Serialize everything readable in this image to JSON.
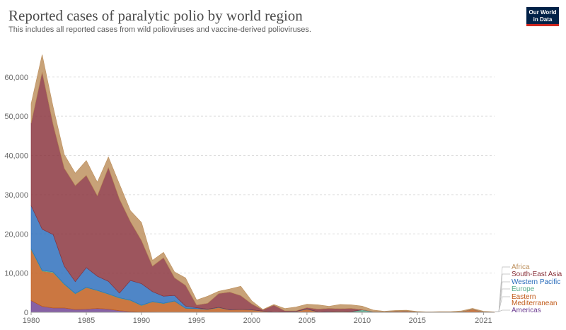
{
  "header": {
    "title": "Reported cases of paralytic polio by world region",
    "subtitle": "This includes all reported cases from wild polioviruses and vaccine-derived polioviruses.",
    "logo_line1": "Our World",
    "logo_line2": "in Data"
  },
  "chart_data": {
    "type": "area",
    "stacked": true,
    "title": "Reported cases of paralytic polio by world region",
    "subtitle": "This includes all reported cases from wild polioviruses and vaccine-derived polioviruses.",
    "xlabel": "",
    "ylabel": "",
    "x": [
      1980,
      1981,
      1982,
      1983,
      1984,
      1985,
      1986,
      1987,
      1988,
      1989,
      1990,
      1991,
      1992,
      1993,
      1994,
      1995,
      1996,
      1997,
      1998,
      1999,
      2000,
      2001,
      2002,
      2003,
      2004,
      2005,
      2006,
      2007,
      2008,
      2009,
      2010,
      2011,
      2012,
      2013,
      2014,
      2015,
      2016,
      2017,
      2018,
      2019,
      2020,
      2021,
      2022
    ],
    "xlim": [
      1980,
      2022
    ],
    "ylim": [
      0,
      67000
    ],
    "x_ticks": [
      1980,
      1985,
      1990,
      1995,
      2000,
      2005,
      2010,
      2015,
      2021
    ],
    "y_ticks": [
      0,
      10000,
      20000,
      30000,
      40000,
      50000,
      60000
    ],
    "y_tick_labels": [
      "0",
      "10,000",
      "20,000",
      "30,000",
      "40,000",
      "50,000",
      "60,000"
    ],
    "grid": true,
    "legend_position": "right",
    "series": [
      {
        "name": "Americas",
        "color": "#6d3e91",
        "values": [
          3000,
          1500,
          1100,
          1100,
          700,
          800,
          1000,
          800,
          400,
          200,
          100,
          50,
          20,
          10,
          5,
          0,
          0,
          0,
          0,
          0,
          0,
          0,
          0,
          0,
          0,
          0,
          0,
          0,
          0,
          0,
          0,
          0,
          0,
          0,
          0,
          0,
          0,
          0,
          0,
          0,
          0,
          0,
          0
        ]
      },
      {
        "name": "Eastern Mediterranean",
        "color": "#c05917",
        "values": [
          13000,
          9000,
          9000,
          6000,
          4000,
          5500,
          4500,
          3800,
          3200,
          2800,
          1600,
          2600,
          2200,
          2800,
          1000,
          900,
          700,
          1200,
          600,
          700,
          600,
          300,
          100,
          150,
          200,
          800,
          100,
          200,
          300,
          200,
          150,
          100,
          150,
          250,
          400,
          100,
          50,
          50,
          50,
          150,
          700,
          100,
          50
        ]
      },
      {
        "name": "Europe",
        "color": "#58ac8c",
        "values": [
          200,
          200,
          200,
          150,
          100,
          100,
          100,
          100,
          100,
          100,
          100,
          100,
          80,
          80,
          50,
          50,
          50,
          30,
          20,
          20,
          10,
          5,
          5,
          5,
          5,
          5,
          5,
          5,
          5,
          5,
          460,
          5,
          5,
          5,
          5,
          5,
          5,
          5,
          5,
          5,
          5,
          5,
          5
        ]
      },
      {
        "name": "Western Pacific",
        "color": "#286bbb",
        "values": [
          11000,
          10500,
          9500,
          4500,
          3000,
          5000,
          3600,
          3200,
          1200,
          5000,
          5500,
          2500,
          1800,
          1400,
          500,
          200,
          50,
          40,
          30,
          30,
          20,
          10,
          5,
          5,
          5,
          80,
          5,
          5,
          5,
          5,
          5,
          60,
          5,
          5,
          5,
          5,
          5,
          5,
          5,
          5,
          5,
          5,
          5
        ]
      },
      {
        "name": "South-East Asia",
        "color": "#883039",
        "values": [
          21000,
          40000,
          28000,
          25000,
          24500,
          23500,
          20500,
          29000,
          24000,
          15000,
          11000,
          6500,
          9800,
          4500,
          5300,
          700,
          1500,
          3500,
          4500,
          3500,
          1500,
          300,
          1700,
          200,
          150,
          300,
          700,
          800,
          600,
          800,
          50,
          5,
          5,
          5,
          5,
          5,
          5,
          5,
          5,
          5,
          5,
          5,
          5
        ]
      },
      {
        "name": "Africa",
        "color": "#bc8e5a",
        "values": [
          5000,
          4500,
          4500,
          3500,
          3200,
          3800,
          3500,
          2700,
          3800,
          2800,
          4600,
          1500,
          1400,
          1500,
          1900,
          1300,
          1800,
          600,
          800,
          2400,
          800,
          100,
          200,
          600,
          1000,
          900,
          1100,
          500,
          1100,
          900,
          900,
          400,
          100,
          200,
          100,
          100,
          50,
          100,
          100,
          200,
          300,
          150,
          50
        ]
      }
    ]
  }
}
